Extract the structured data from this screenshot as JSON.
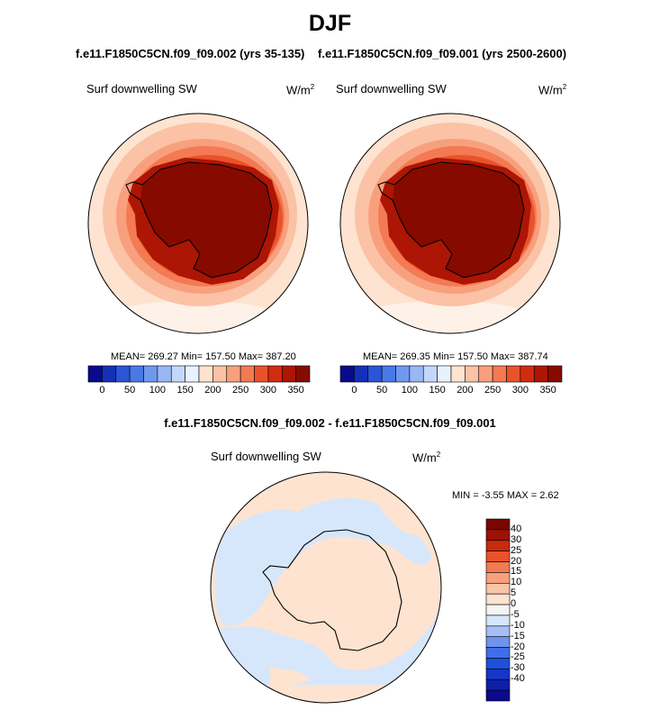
{
  "figure": {
    "title": "DJF",
    "diff_title": "f.e11.F1850C5CN.f09_f09.002 - f.e11.F1850C5CN.f09_f09.001"
  },
  "panels": [
    {
      "case_title": "f.e11.F1850C5CN.f09_f09.002 (yrs 35-135)",
      "variable": "Surf downwelling SW",
      "units_base": "W/m",
      "units_exp": "2",
      "stats": "MEAN= 269.27  Min= 157.50  Max= 387.20"
    },
    {
      "case_title": "f.e11.F1850C5CN.f09_f09.001 (yrs 2500-2600)",
      "variable": "Surf downwelling SW",
      "units_base": "W/m",
      "units_exp": "2",
      "stats": "MEAN= 269.35  Min= 157.50  Max= 387.74"
    }
  ],
  "difference": {
    "variable": "Surf downwelling SW",
    "units_base": "W/m",
    "units_exp": "2",
    "stats": "MIN =  -3.55 MAX =   2.62"
  },
  "colorbars": {
    "abs_colors": [
      "#0a0a8c",
      "#1530b8",
      "#2a55d6",
      "#4a78e6",
      "#6f98ef",
      "#97b7f5",
      "#c2d8fb",
      "#e8f2fd",
      "#fde3d0",
      "#fbc2a6",
      "#f8a07e",
      "#f37a52",
      "#e9522b",
      "#d22c10",
      "#ad1504",
      "#860a00"
    ],
    "abs_tick_labels": [
      "0",
      "50",
      "100",
      "150",
      "200",
      "250",
      "300",
      "350"
    ],
    "diff_colors": [
      "#0a0a8c",
      "#0f1fa8",
      "#1537c6",
      "#1f50dc",
      "#3f6fe8",
      "#6f93ef",
      "#a6bff6",
      "#d6e7fb",
      "#f4f4f4",
      "#fde3d0",
      "#fbc5a8",
      "#f8a07e",
      "#f37a52",
      "#e9522b",
      "#c82a0c",
      "#9e1203",
      "#7a0600"
    ],
    "diff_tick_labels": [
      "40",
      "30",
      "25",
      "20",
      "15",
      "10",
      "5",
      "0",
      "-5",
      "-10",
      "-15",
      "-20",
      "-25",
      "-30",
      "-40"
    ]
  }
}
